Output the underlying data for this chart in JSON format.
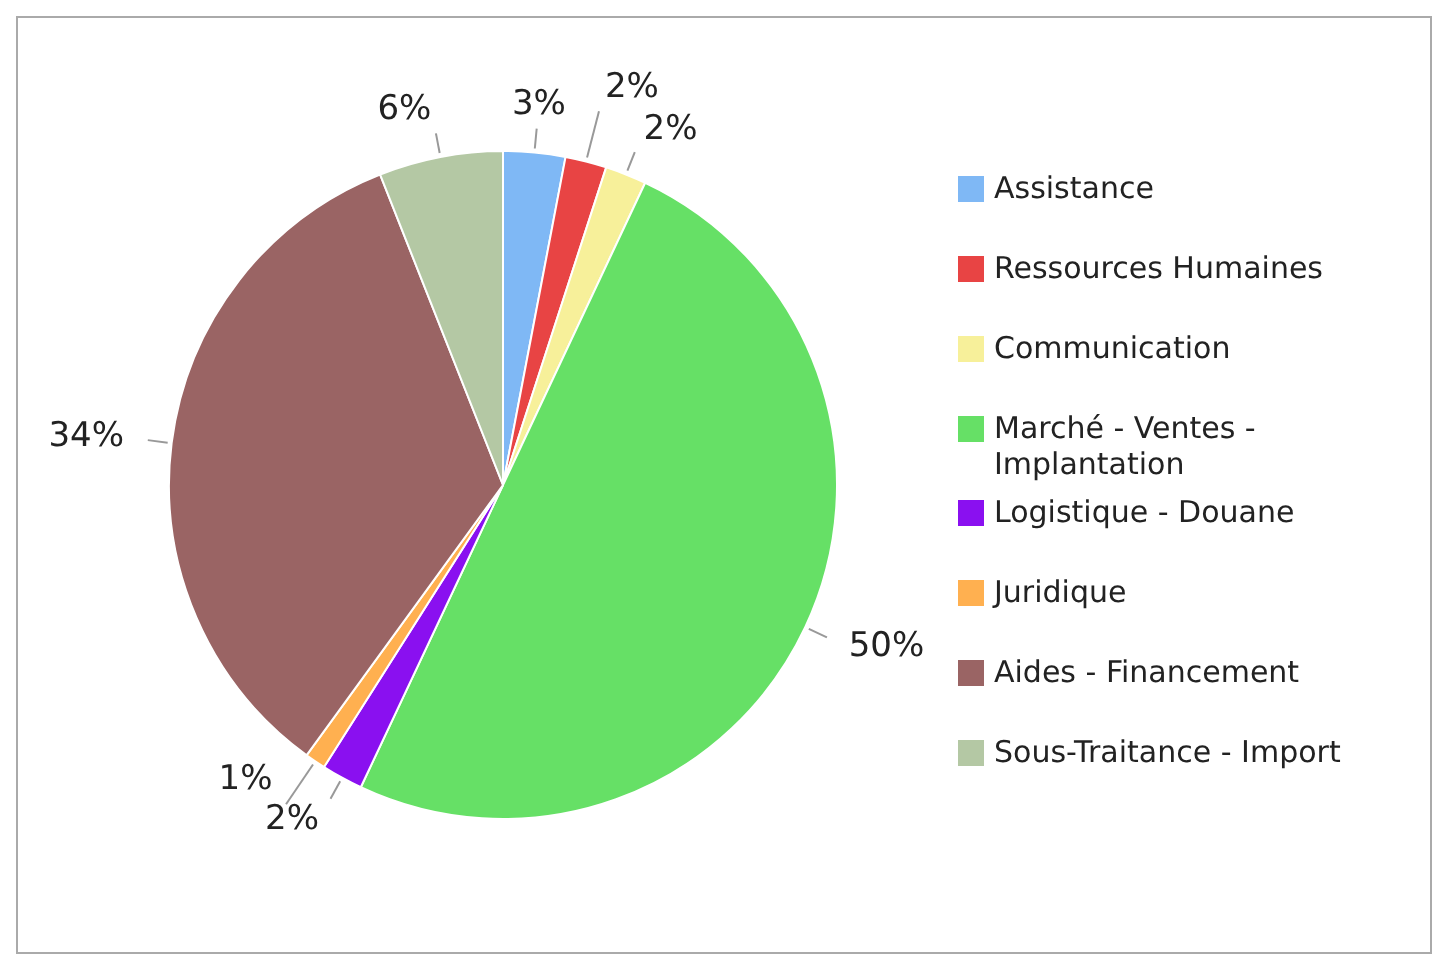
{
  "chart_data": {
    "type": "pie",
    "categories": [
      "Assistance",
      "Ressources Humaines",
      "Communication",
      "Marché - Ventes - Implantation",
      "Logistique - Douane",
      "Juridique",
      "Aides - Financement",
      "Sous-Traitance - Import"
    ],
    "values": [
      3,
      2,
      2,
      50,
      2,
      1,
      34,
      6
    ],
    "colors": [
      "#7fb8f5",
      "#e84444",
      "#f7f09a",
      "#66e066",
      "#8a10f0",
      "#ffb050",
      "#9a6464",
      "#b4c8a4"
    ],
    "value_labels": [
      "3%",
      "2%",
      "2%",
      "50%",
      "2%",
      "1%",
      "34%",
      "6%"
    ],
    "legend": "right"
  }
}
